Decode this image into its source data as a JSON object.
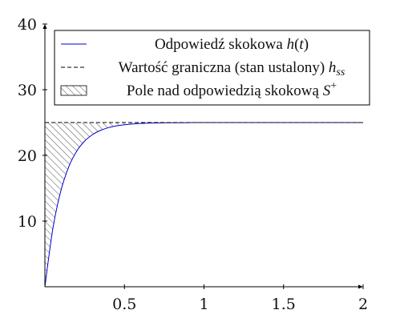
{
  "chart_data": {
    "type": "line",
    "title": "",
    "xlabel": "",
    "ylabel": "",
    "xlim": [
      0,
      2
    ],
    "ylim": [
      0,
      40
    ],
    "x_ticks": [
      {
        "value": 0.5,
        "label": "0.5"
      },
      {
        "value": 1,
        "label": "1"
      },
      {
        "value": 1.5,
        "label": "1.5"
      },
      {
        "value": 2,
        "label": "2"
      }
    ],
    "y_ticks": [
      {
        "value": 10,
        "label": "10"
      },
      {
        "value": 20,
        "label": "20"
      },
      {
        "value": 30,
        "label": "30"
      },
      {
        "value": 40,
        "label": "40"
      }
    ],
    "grid": false,
    "legend_position": "top",
    "series": [
      {
        "name": "Odpowiedź skokowa h(t)",
        "style": "solid",
        "color": "#0000cc",
        "x": [
          0,
          0.05,
          0.1,
          0.15,
          0.2,
          0.25,
          0.3,
          0.35,
          0.4,
          0.45,
          0.5,
          0.6,
          0.7,
          0.8,
          0.9,
          1.0,
          1.25,
          1.5,
          1.75,
          2.0
        ],
        "y": [
          0,
          8.85,
          14.57,
          18.26,
          20.64,
          22.18,
          23.17,
          23.81,
          24.23,
          24.5,
          24.67,
          24.86,
          24.94,
          24.97,
          24.99,
          25.0,
          25.0,
          25.0,
          25.0,
          25.0
        ]
      },
      {
        "name": "Wartość graniczna (stan ustalony) h_ss",
        "style": "dashed",
        "color": "#000000",
        "x": [
          0,
          2
        ],
        "y": [
          25,
          25
        ]
      },
      {
        "name": "Pole nad odpowiedzią skokową S⁺",
        "style": "hatched-area",
        "color": "#555555",
        "x": [
          0,
          0.05,
          0.1,
          0.15,
          0.2,
          0.25,
          0.3,
          0.35,
          0.4,
          0.45,
          0.5,
          0.6,
          0.7,
          0.8,
          0.9,
          1.0
        ],
        "y_top": 25,
        "y": [
          0,
          8.85,
          14.57,
          18.26,
          20.64,
          22.18,
          23.17,
          23.81,
          24.23,
          24.5,
          24.67,
          24.86,
          24.94,
          24.97,
          24.99,
          25.0
        ]
      }
    ],
    "legend": [
      {
        "symbol": "line",
        "text": "Odpowiedź skokowa ",
        "math": "h",
        "math_sub": "",
        "math_sup": "",
        "after": "(t)"
      },
      {
        "symbol": "dashed",
        "text": "Wartość graniczna (stan ustalony) ",
        "math": "h",
        "math_sub": "ss",
        "math_sup": "",
        "after": ""
      },
      {
        "symbol": "hatch",
        "text": "Pole nad odpowiedzią skokową ",
        "math": "S",
        "math_sub": "",
        "math_sup": "+",
        "after": ""
      }
    ]
  }
}
